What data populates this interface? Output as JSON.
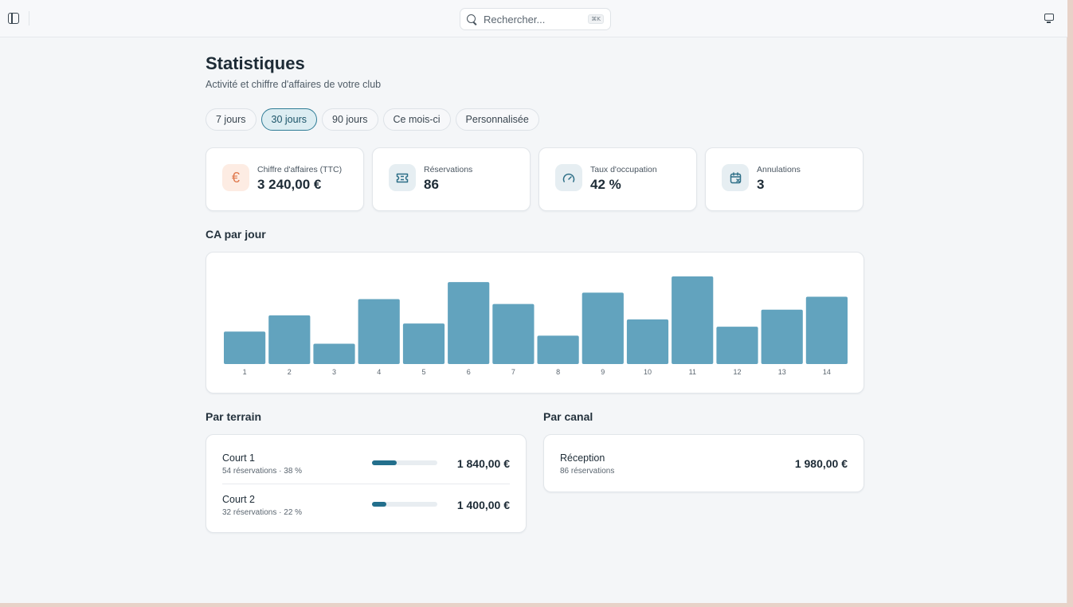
{
  "search": {
    "placeholder": "Rechercher...",
    "shortcut": "⌘K"
  },
  "page": {
    "title": "Statistiques",
    "subtitle": "Activité et chiffre d'affaires de votre club"
  },
  "periods": [
    {
      "label": "7 jours",
      "active": false
    },
    {
      "label": "30 jours",
      "active": true
    },
    {
      "label": "90 jours",
      "active": false
    },
    {
      "label": "Ce mois-ci",
      "active": false
    },
    {
      "label": "Personnalisée",
      "active": false
    }
  ],
  "kpis": [
    {
      "label": "Chiffre d'affaires (TTC)",
      "value": "3 240,00 €",
      "icon": "euro-icon"
    },
    {
      "label": "Réservations",
      "value": "86",
      "icon": "ticket-icon"
    },
    {
      "label": "Taux d'occupation",
      "value": "42 %",
      "icon": "gauge-icon"
    },
    {
      "label": "Annulations",
      "value": "3",
      "icon": "calendar-x-icon"
    }
  ],
  "chart_section": {
    "title": "CA par jour"
  },
  "chart_data": {
    "type": "bar",
    "categories": [
      "1",
      "2",
      "3",
      "4",
      "5",
      "6",
      "7",
      "8",
      "9",
      "10",
      "11",
      "12",
      "13",
      "14"
    ],
    "values": [
      40,
      60,
      25,
      80,
      50,
      101,
      74,
      35,
      88,
      55,
      108,
      46,
      67,
      83
    ],
    "color": "#62a3be",
    "grid": false
  },
  "by_court": {
    "title": "Par terrain",
    "items": [
      {
        "name": "Court 1",
        "detail": "54 réservations · 38 %",
        "share": 0.38,
        "amount": "1 840,00 €"
      },
      {
        "name": "Court 2",
        "detail": "32 réservations · 22 %",
        "share": 0.22,
        "amount": "1 400,00 €"
      }
    ]
  },
  "by_channel": {
    "title": "Par canal",
    "items": [
      {
        "name": "Réception",
        "detail": "86 réservations",
        "amount": "1 980,00 €"
      }
    ]
  },
  "colors": {
    "accent": "#236f8c",
    "bar": "#62a3be",
    "euro": "#e07a4f"
  }
}
